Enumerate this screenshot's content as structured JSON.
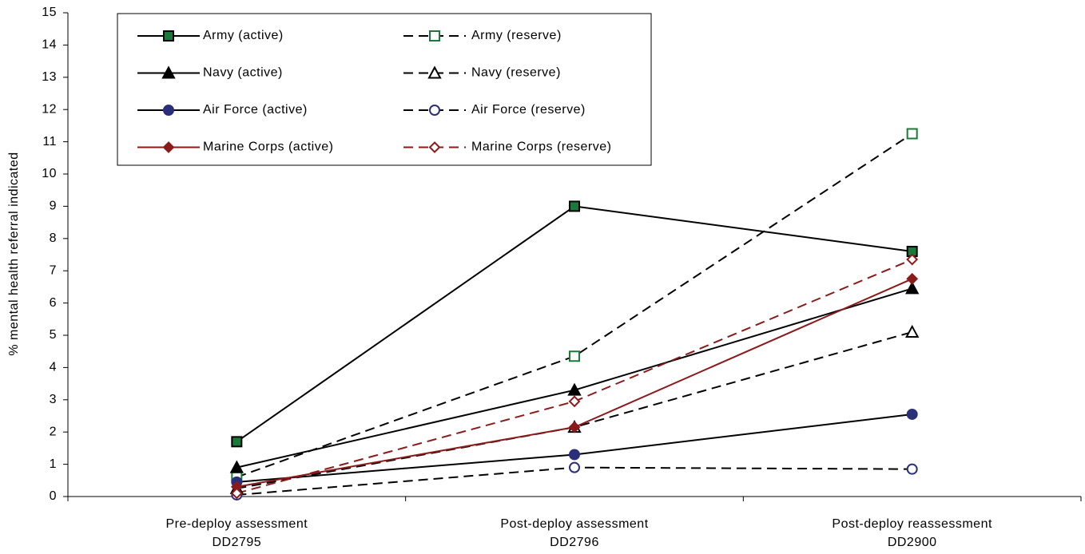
{
  "chart_data": {
    "type": "line",
    "y_label": "% mental health referral indicated",
    "categories": [
      [
        "Pre-deploy assessment",
        "DD2795"
      ],
      [
        "Post-deploy assessment",
        "DD2796"
      ],
      [
        "Post-deploy reassessment",
        "DD2900"
      ]
    ],
    "ylim": [
      0,
      15
    ],
    "yticks": [
      0,
      1,
      2,
      3,
      4,
      5,
      6,
      7,
      8,
      9,
      10,
      11,
      12,
      13,
      14,
      15
    ],
    "grid": false,
    "legend": "top-left",
    "series": [
      {
        "name": "Army (active)",
        "color": "#000000",
        "marker_color": "#1a7a3a",
        "marker": "square",
        "filled": true,
        "dashed": false,
        "values": [
          1.7,
          9.0,
          7.6
        ]
      },
      {
        "name": "Army (reserve)",
        "color": "#000000",
        "marker_color": "#1a7a3a",
        "marker": "square",
        "filled": false,
        "dashed": true,
        "values": [
          0.6,
          4.35,
          11.25
        ]
      },
      {
        "name": "Navy (active)",
        "color": "#000000",
        "marker_color": "#000000",
        "marker": "triangle",
        "filled": true,
        "dashed": false,
        "values": [
          0.9,
          3.3,
          6.45
        ]
      },
      {
        "name": "Navy (reserve)",
        "color": "#000000",
        "marker_color": "#000000",
        "marker": "triangle",
        "filled": false,
        "dashed": true,
        "values": [
          0.25,
          2.15,
          5.1
        ]
      },
      {
        "name": "Air Force (active)",
        "color": "#000000",
        "marker_color": "#2b2f7a",
        "marker": "circle",
        "filled": true,
        "dashed": false,
        "values": [
          0.45,
          1.3,
          2.55
        ]
      },
      {
        "name": "Air Force (reserve)",
        "color": "#000000",
        "marker_color": "#2b2f7a",
        "marker": "circle",
        "filled": false,
        "dashed": true,
        "values": [
          0.05,
          0.9,
          0.85
        ]
      },
      {
        "name": "Marine Corps (active)",
        "color": "#8b1a1a",
        "marker_color": "#8b1a1a",
        "marker": "diamond",
        "filled": true,
        "dashed": false,
        "values": [
          0.3,
          2.15,
          6.75
        ]
      },
      {
        "name": "Marine Corps (reserve)",
        "color": "#8b1a1a",
        "marker_color": "#8b1a1a",
        "marker": "diamond",
        "filled": false,
        "dashed": true,
        "values": [
          0.1,
          2.95,
          7.35
        ]
      }
    ]
  }
}
